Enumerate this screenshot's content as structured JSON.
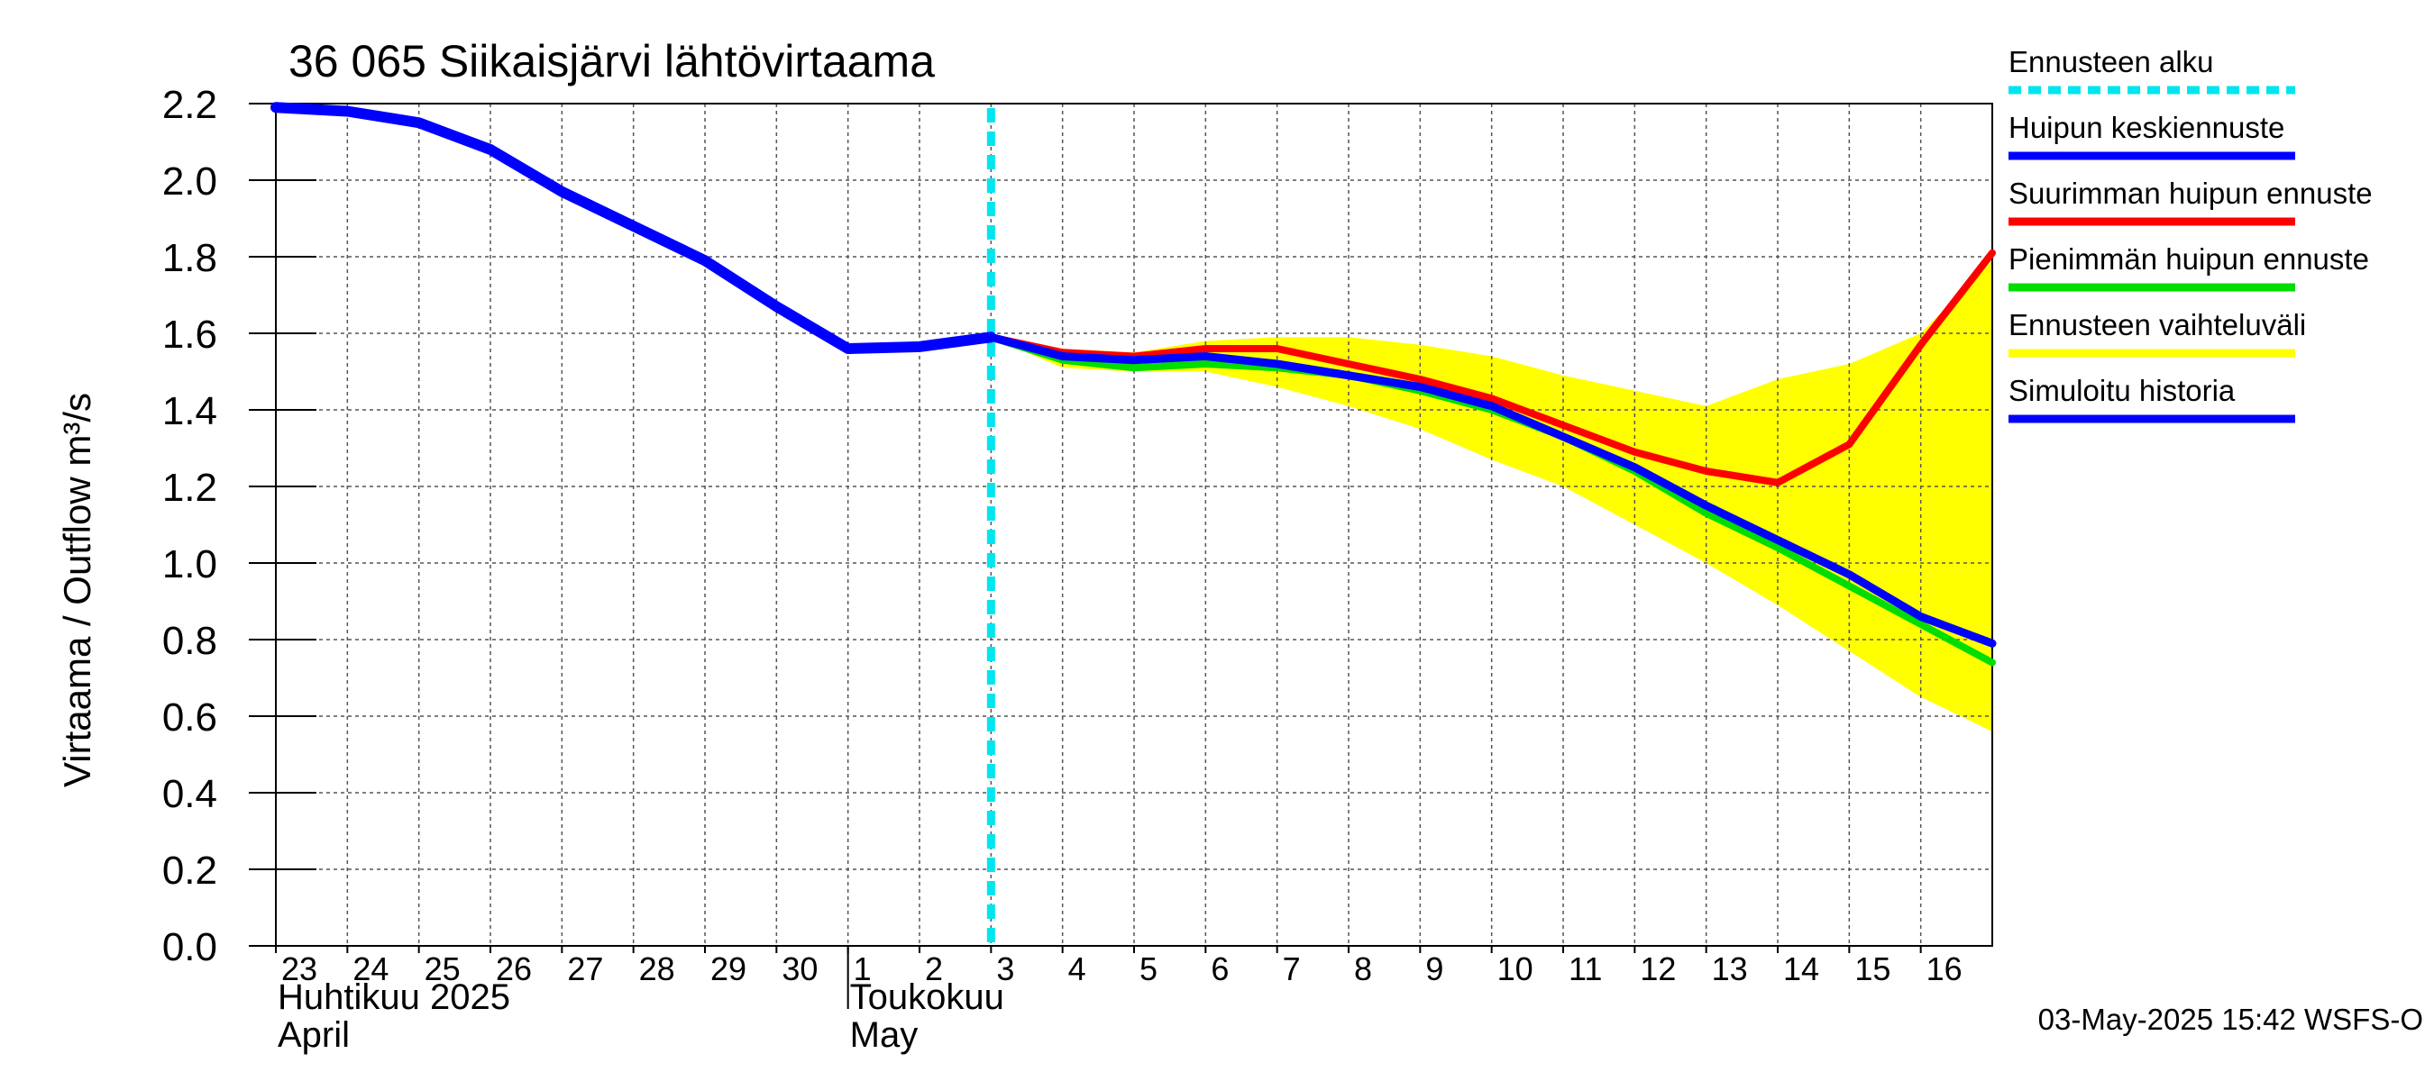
{
  "chart_data": {
    "type": "line",
    "title": "36 065 Siikaisjärvi lähtövirtaama",
    "ylabel": "Virtaama / Outflow    m³/s",
    "ylim": [
      0.0,
      2.2
    ],
    "yticks": [
      "0.0",
      "0.2",
      "0.4",
      "0.6",
      "0.8",
      "1.0",
      "1.2",
      "1.4",
      "1.6",
      "1.8",
      "2.0",
      "2.2"
    ],
    "x_start": "2025-04-23",
    "x_end": "2025-05-17",
    "xticks": [
      {
        "date": "2025-04-23",
        "label": "23"
      },
      {
        "date": "2025-04-24",
        "label": "24"
      },
      {
        "date": "2025-04-25",
        "label": "25"
      },
      {
        "date": "2025-04-26",
        "label": "26"
      },
      {
        "date": "2025-04-27",
        "label": "27"
      },
      {
        "date": "2025-04-28",
        "label": "28"
      },
      {
        "date": "2025-04-29",
        "label": "29"
      },
      {
        "date": "2025-04-30",
        "label": "30"
      },
      {
        "date": "2025-05-01",
        "label": "1"
      },
      {
        "date": "2025-05-02",
        "label": "2"
      },
      {
        "date": "2025-05-03",
        "label": "3"
      },
      {
        "date": "2025-05-04",
        "label": "4"
      },
      {
        "date": "2025-05-05",
        "label": "5"
      },
      {
        "date": "2025-05-06",
        "label": "6"
      },
      {
        "date": "2025-05-07",
        "label": "7"
      },
      {
        "date": "2025-05-08",
        "label": "8"
      },
      {
        "date": "2025-05-09",
        "label": "9"
      },
      {
        "date": "2025-05-10",
        "label": "10"
      },
      {
        "date": "2025-05-11",
        "label": "11"
      },
      {
        "date": "2025-05-12",
        "label": "12"
      },
      {
        "date": "2025-05-13",
        "label": "13"
      },
      {
        "date": "2025-05-14",
        "label": "14"
      },
      {
        "date": "2025-05-15",
        "label": "15"
      },
      {
        "date": "2025-05-16",
        "label": "16"
      }
    ],
    "month_labels": [
      {
        "date": "2025-04-23",
        "fi": "Huhtikuu  2025",
        "en": "April"
      },
      {
        "date": "2025-05-01",
        "fi": "Toukokuu",
        "en": "May"
      }
    ],
    "month_divider": "2025-05-01",
    "forecast_start": "2025-05-03",
    "grid": true,
    "legend_position": "right",
    "series": [
      {
        "name": "Ennusteen vaihteluväli",
        "kind": "band",
        "color": "#ffff00",
        "points": [
          {
            "x": "2025-05-03",
            "lo": 1.59,
            "hi": 1.59
          },
          {
            "x": "2025-05-04",
            "lo": 1.51,
            "hi": 1.56
          },
          {
            "x": "2025-05-05",
            "lo": 1.5,
            "hi": 1.55
          },
          {
            "x": "2025-05-06",
            "lo": 1.5,
            "hi": 1.58
          },
          {
            "x": "2025-05-07",
            "lo": 1.46,
            "hi": 1.59
          },
          {
            "x": "2025-05-08",
            "lo": 1.41,
            "hi": 1.59
          },
          {
            "x": "2025-05-09",
            "lo": 1.35,
            "hi": 1.57
          },
          {
            "x": "2025-05-10",
            "lo": 1.27,
            "hi": 1.54
          },
          {
            "x": "2025-05-11",
            "lo": 1.2,
            "hi": 1.49
          },
          {
            "x": "2025-05-12",
            "lo": 1.1,
            "hi": 1.45
          },
          {
            "x": "2025-05-13",
            "lo": 1.0,
            "hi": 1.41
          },
          {
            "x": "2025-05-14",
            "lo": 0.89,
            "hi": 1.48
          },
          {
            "x": "2025-05-15",
            "lo": 0.77,
            "hi": 1.52
          },
          {
            "x": "2025-05-16",
            "lo": 0.65,
            "hi": 1.6
          },
          {
            "x": "2025-05-17",
            "lo": 0.56,
            "hi": 1.79
          }
        ]
      },
      {
        "name": "Pienimmän huipun ennuste",
        "kind": "line",
        "color": "#00dd00",
        "points": [
          {
            "x": "2025-05-03",
            "y": 1.59
          },
          {
            "x": "2025-05-04",
            "y": 1.53
          },
          {
            "x": "2025-05-05",
            "y": 1.51
          },
          {
            "x": "2025-05-06",
            "y": 1.52
          },
          {
            "x": "2025-05-07",
            "y": 1.51
          },
          {
            "x": "2025-05-08",
            "y": 1.49
          },
          {
            "x": "2025-05-09",
            "y": 1.45
          },
          {
            "x": "2025-05-10",
            "y": 1.4
          },
          {
            "x": "2025-05-11",
            "y": 1.33
          },
          {
            "x": "2025-05-12",
            "y": 1.24
          },
          {
            "x": "2025-05-13",
            "y": 1.13
          },
          {
            "x": "2025-05-14",
            "y": 1.04
          },
          {
            "x": "2025-05-15",
            "y": 0.94
          },
          {
            "x": "2025-05-16",
            "y": 0.84
          },
          {
            "x": "2025-05-17",
            "y": 0.74
          }
        ]
      },
      {
        "name": "Suurimman huipun ennuste",
        "kind": "line",
        "color": "#ff0000",
        "points": [
          {
            "x": "2025-05-03",
            "y": 1.59
          },
          {
            "x": "2025-05-04",
            "y": 1.55
          },
          {
            "x": "2025-05-05",
            "y": 1.54
          },
          {
            "x": "2025-05-06",
            "y": 1.56
          },
          {
            "x": "2025-05-07",
            "y": 1.56
          },
          {
            "x": "2025-05-08",
            "y": 1.52
          },
          {
            "x": "2025-05-09",
            "y": 1.48
          },
          {
            "x": "2025-05-10",
            "y": 1.43
          },
          {
            "x": "2025-05-11",
            "y": 1.36
          },
          {
            "x": "2025-05-12",
            "y": 1.29
          },
          {
            "x": "2025-05-13",
            "y": 1.24
          },
          {
            "x": "2025-05-14",
            "y": 1.21
          },
          {
            "x": "2025-05-15",
            "y": 1.31
          },
          {
            "x": "2025-05-16",
            "y": 1.57
          },
          {
            "x": "2025-05-17",
            "y": 1.81
          }
        ]
      },
      {
        "name": "Huipun keskiennuste",
        "kind": "line",
        "color": "#0000ff",
        "points": [
          {
            "x": "2025-05-03",
            "y": 1.59
          },
          {
            "x": "2025-05-04",
            "y": 1.54
          },
          {
            "x": "2025-05-05",
            "y": 1.53
          },
          {
            "x": "2025-05-06",
            "y": 1.54
          },
          {
            "x": "2025-05-07",
            "y": 1.52
          },
          {
            "x": "2025-05-08",
            "y": 1.49
          },
          {
            "x": "2025-05-09",
            "y": 1.46
          },
          {
            "x": "2025-05-10",
            "y": 1.41
          },
          {
            "x": "2025-05-11",
            "y": 1.33
          },
          {
            "x": "2025-05-12",
            "y": 1.25
          },
          {
            "x": "2025-05-13",
            "y": 1.15
          },
          {
            "x": "2025-05-14",
            "y": 1.06
          },
          {
            "x": "2025-05-15",
            "y": 0.97
          },
          {
            "x": "2025-05-16",
            "y": 0.86
          },
          {
            "x": "2025-05-17",
            "y": 0.79
          }
        ]
      },
      {
        "name": "Simuloitu historia",
        "kind": "line",
        "color": "#0000ff",
        "points": [
          {
            "x": "2025-04-23",
            "y": 2.19
          },
          {
            "x": "2025-04-24",
            "y": 2.18
          },
          {
            "x": "2025-04-25",
            "y": 2.15
          },
          {
            "x": "2025-04-26",
            "y": 2.08
          },
          {
            "x": "2025-04-27",
            "y": 1.97
          },
          {
            "x": "2025-04-28",
            "y": 1.88
          },
          {
            "x": "2025-04-29",
            "y": 1.79
          },
          {
            "x": "2025-04-30",
            "y": 1.67
          },
          {
            "x": "2025-05-01",
            "y": 1.56
          },
          {
            "x": "2025-05-02",
            "y": 1.565
          },
          {
            "x": "2025-05-03",
            "y": 1.59
          }
        ]
      }
    ],
    "legend": [
      {
        "label": "Ennusteen alku",
        "color": "#00e5ee",
        "style": "dashed"
      },
      {
        "label": "Huipun keskiennuste",
        "color": "#0000ff",
        "style": "solid"
      },
      {
        "label": "Suurimman huipun ennuste",
        "color": "#ff0000",
        "style": "solid"
      },
      {
        "label": "Pienimmän huipun ennuste",
        "color": "#00dd00",
        "style": "solid"
      },
      {
        "label": "Ennusteen vaihteluväli",
        "color": "#ffff00",
        "style": "solid"
      },
      {
        "label": "Simuloitu historia",
        "color": "#0000ff",
        "style": "solid"
      }
    ],
    "footer": "03-May-2025 15:42 WSFS-O"
  }
}
